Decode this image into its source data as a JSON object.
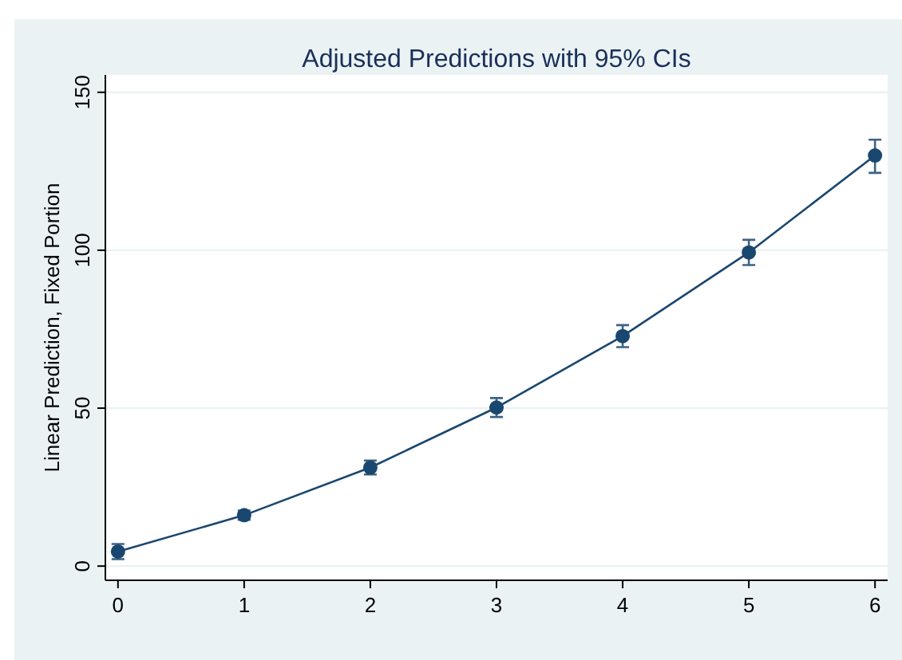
{
  "chart_data": {
    "type": "line",
    "title": "Adjusted Predictions with 95% CIs",
    "ylabel": "Linear Prediction, Fixed Portion",
    "x": [
      0,
      1,
      2,
      3,
      4,
      5,
      6
    ],
    "values": [
      4.6,
      16.1,
      31.2,
      50.2,
      72.8,
      99.3,
      130
    ],
    "color": "#1a476f",
    "errors": [
      [
        2.2,
        7
      ],
      [
        14.6,
        17.6
      ],
      [
        29,
        33.4
      ],
      [
        47.2,
        53.2
      ],
      [
        69.3,
        76.3
      ],
      [
        95.3,
        103.3
      ],
      [
        124.5,
        135
      ]
    ],
    "xlim": [
      -0.1,
      6.1
    ],
    "ylim": [
      -4.5,
      155.5
    ],
    "xticks": [
      0,
      1,
      2,
      3,
      4,
      5,
      6
    ],
    "yticks": [
      0,
      50,
      100,
      150
    ],
    "grid": "y",
    "marker": "circle",
    "line_style": "solid"
  }
}
